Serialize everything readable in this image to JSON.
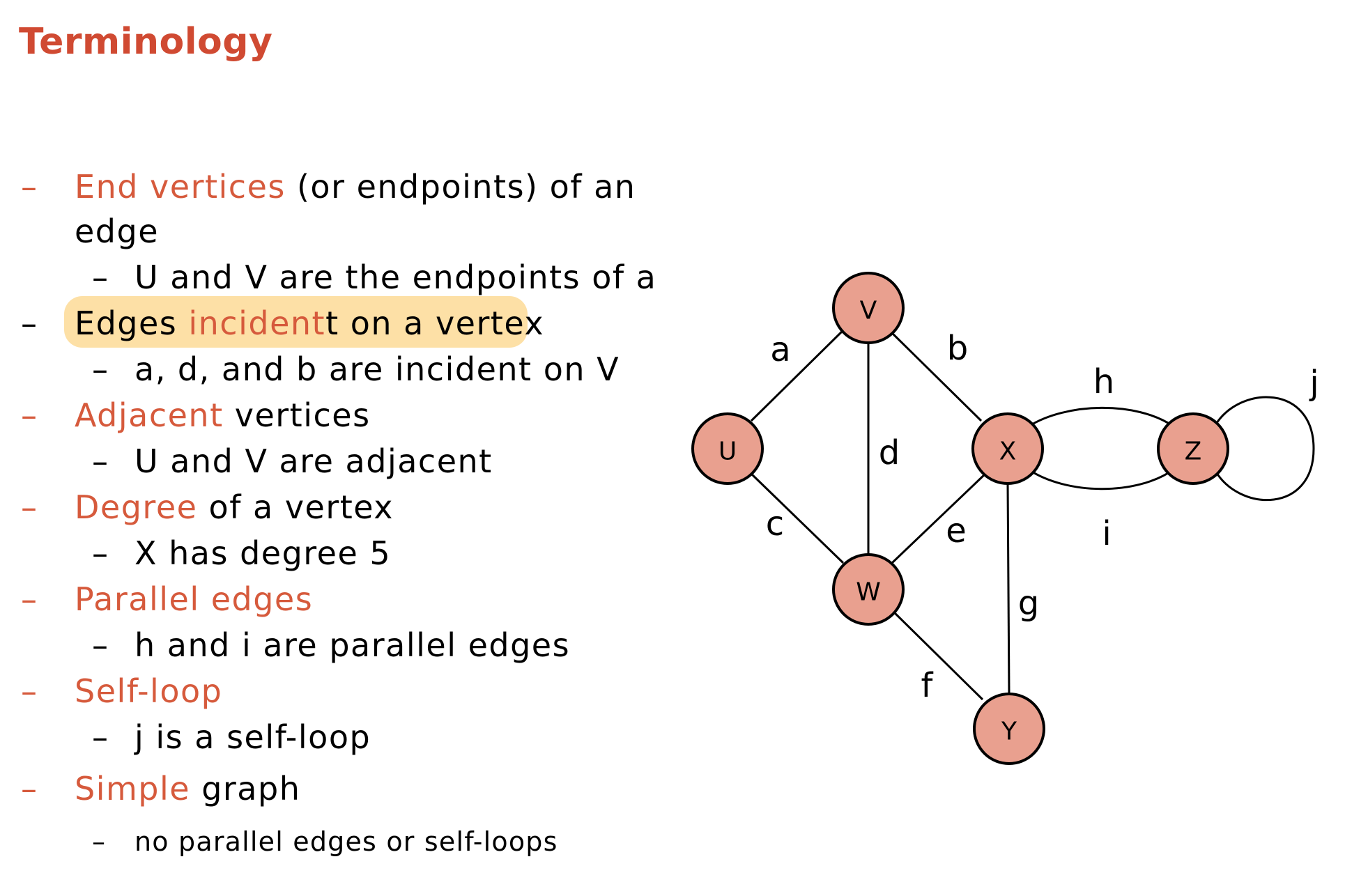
{
  "title": "Terminology",
  "colors": {
    "accent": "#d65a3c",
    "title": "#d04a32",
    "highlight": "#fde0a6",
    "vertex_fill": "#e9a08f"
  },
  "bullets": [
    {
      "accent": "End vertices",
      "rest": " (or endpoints) of an",
      "cont": "edge",
      "sub": "U and V are the endpoints of a"
    },
    {
      "pre": "Edges ",
      "accent": "incident",
      "rest": "t on a vertex",
      "sub": "a, d, and b are incident on V"
    },
    {
      "accent": "Adjacent",
      "rest": " vertices",
      "sub": "U and V are adjacent"
    },
    {
      "accent": "Degree",
      "rest": " of a vertex",
      "sub": "X has degree 5"
    },
    {
      "accent": "Parallel edges",
      "sub": "h and i are parallel edges"
    },
    {
      "accent": "Self-loop",
      "sub": "j is a self-loop"
    },
    {
      "accent": "Simple",
      "rest": " graph",
      "sub": "no parallel edges or self-loops"
    }
  ],
  "graph": {
    "vertices": [
      "V",
      "U",
      "X",
      "Z",
      "W",
      "Y"
    ],
    "edges": [
      {
        "label": "a",
        "from": "U",
        "to": "V"
      },
      {
        "label": "b",
        "from": "V",
        "to": "X"
      },
      {
        "label": "c",
        "from": "U",
        "to": "W"
      },
      {
        "label": "d",
        "from": "V",
        "to": "W"
      },
      {
        "label": "e",
        "from": "W",
        "to": "X"
      },
      {
        "label": "f",
        "from": "W",
        "to": "Y"
      },
      {
        "label": "g",
        "from": "X",
        "to": "Y"
      },
      {
        "label": "h",
        "from": "X",
        "to": "Z"
      },
      {
        "label": "i",
        "from": "X",
        "to": "Z"
      },
      {
        "label": "j",
        "from": "Z",
        "to": "Z"
      }
    ]
  }
}
